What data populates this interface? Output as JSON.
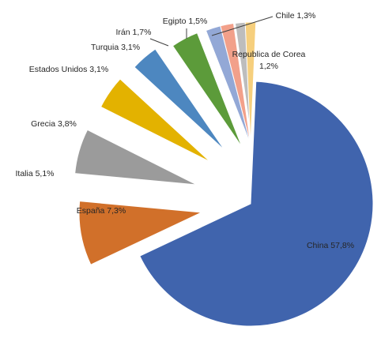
{
  "chart_data": {
    "type": "pie",
    "title": "",
    "exploded": true,
    "slices": [
      {
        "label": "China",
        "value_label": "57,8%",
        "value": 57.8,
        "color": "#4064ad"
      },
      {
        "label": "España",
        "value_label": "7,3%",
        "value": 7.3,
        "color": "#d1702a"
      },
      {
        "label": "Italia",
        "value_label": "5,1%",
        "value": 5.1,
        "color": "#9b9b9b"
      },
      {
        "label": "Grecia",
        "value_label": "3,8%",
        "value": 3.8,
        "color": "#e3b200"
      },
      {
        "label": "Estados Unidos",
        "value_label": "3,1%",
        "value": 3.1,
        "color": "#4d87c0"
      },
      {
        "label": "Turquia",
        "value_label": "3,1%",
        "value": 3.1,
        "color": "#5c9b3a"
      },
      {
        "label": "Irán",
        "value_label": "1,7%",
        "value": 1.7,
        "color": "#93a8d6"
      },
      {
        "label": "Egipto",
        "value_label": "1,5%",
        "value": 1.5,
        "color": "#f2a08a"
      },
      {
        "label": "Chile",
        "value_label": "1,3%",
        "value": 1.3,
        "color": "#bdbdbd"
      },
      {
        "label": "Republica de Corea",
        "value_label": "1,2%",
        "value": 1.2,
        "color": "#f6cf7d"
      }
    ]
  }
}
